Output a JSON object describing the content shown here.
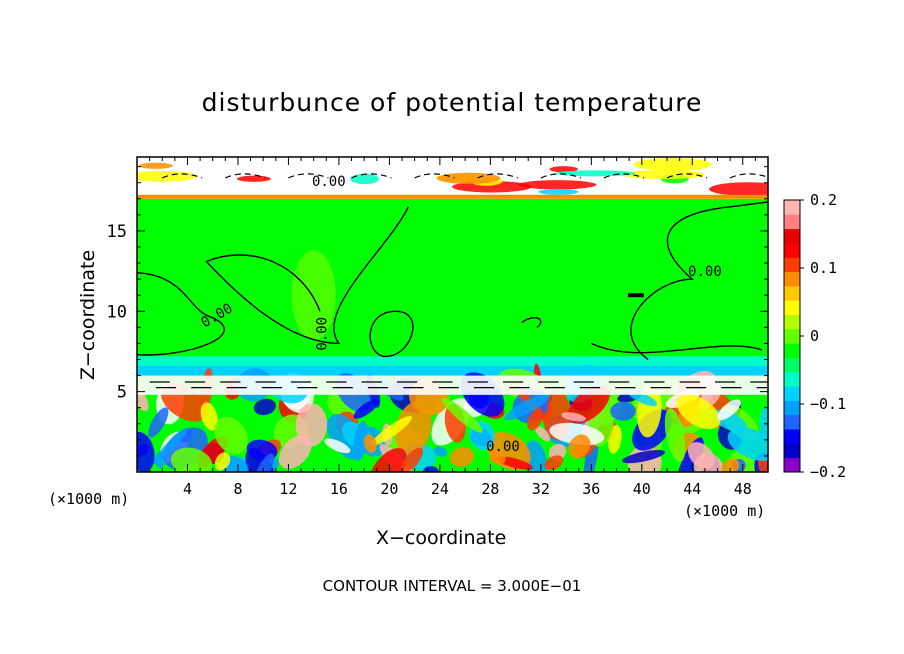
{
  "chart_data": {
    "type": "heatmap",
    "title": "disturbunce of potential temperature",
    "xlabel": "X−coordinate",
    "ylabel": "Z−coordinate",
    "x_unit_left": "(×1000 m)",
    "x_unit_right": "(×1000 m)",
    "footer": "CONTOUR INTERVAL = 3.000E−01",
    "xlim": [
      0,
      50
    ],
    "ylim": [
      0,
      19.6
    ],
    "x_ticks": [
      4,
      8,
      12,
      16,
      20,
      24,
      28,
      32,
      36,
      40,
      44,
      48
    ],
    "x_tick_labels": [
      "4",
      "8",
      "12",
      "16",
      "20",
      "24",
      "28",
      "32",
      "36",
      "40",
      "44",
      "48"
    ],
    "y_ticks": [
      5,
      10,
      15
    ],
    "y_tick_labels": [
      "5",
      "10",
      "15"
    ],
    "contour_labels": [
      "0.00",
      "0.00",
      "0.00",
      "0.00",
      "0.00"
    ],
    "colorbar": {
      "range": [
        -0.2,
        0.2
      ],
      "ticks": [
        0.2,
        0.1,
        0,
        -0.1,
        -0.2
      ],
      "tick_labels": [
        "0.2",
        "0.1",
        "0",
        "−0.1",
        "−0.2"
      ],
      "colors": [
        "#8b00c8",
        "#0000c8",
        "#0000ff",
        "#1e64ff",
        "#00a0ff",
        "#00d2ff",
        "#00ffc8",
        "#00ff64",
        "#00ff00",
        "#64ff00",
        "#b4ff00",
        "#ffff00",
        "#ffc800",
        "#ff8c00",
        "#ff3c00",
        "#ff0000",
        "#e80000",
        "#ff8080",
        "#ffb4b4"
      ]
    },
    "regions": {
      "stratosphere_cap": {
        "z": [
          17.2,
          19.6
        ],
        "description_color": "#ffffff"
      },
      "upper_uniform": {
        "z": [
          6.2,
          17.0
        ],
        "value": 0.0
      },
      "lower_turbulent": {
        "z": [
          0,
          6.0
        ]
      }
    }
  }
}
